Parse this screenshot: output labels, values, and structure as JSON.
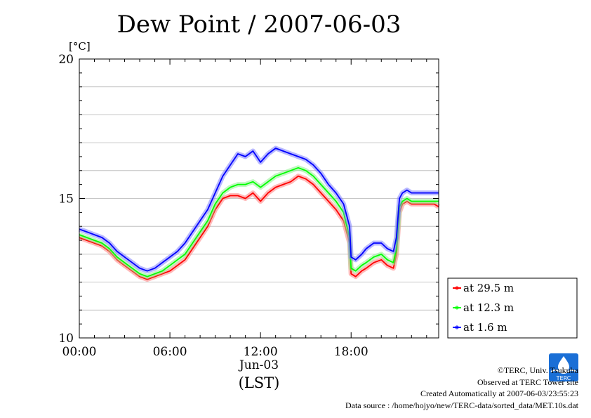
{
  "chart_data": {
    "type": "line",
    "title": "Dew Point / 2007-06-03",
    "ylabel": "[°C]",
    "xlabel": "(LST)",
    "date_label": "Jun-03",
    "ylim": [
      10,
      20
    ],
    "xlim": [
      0,
      23.8
    ],
    "yticks": [
      {
        "value": 10,
        "label": "10"
      },
      {
        "value": 15,
        "label": "15"
      },
      {
        "value": 20,
        "label": "20"
      }
    ],
    "xticks": [
      {
        "value": 0,
        "label": "00:00"
      },
      {
        "value": 6,
        "label": "06:00"
      },
      {
        "value": 12,
        "label": "12:00"
      },
      {
        "value": 18,
        "label": "18:00"
      }
    ],
    "grid": true,
    "legend_position": "right",
    "series": [
      {
        "name": "at 29.5 m",
        "color": "#ff0000",
        "x": [
          0,
          0.5,
          1,
          1.5,
          2,
          2.5,
          3,
          3.5,
          4,
          4.5,
          5,
          5.5,
          6,
          6.5,
          7,
          7.5,
          8,
          8.5,
          9,
          9.5,
          10,
          10.5,
          11,
          11.5,
          12,
          12.5,
          13,
          13.5,
          14,
          14.5,
          15,
          15.5,
          16,
          16.5,
          17,
          17.5,
          17.9,
          18.0,
          18.3,
          18.7,
          19.0,
          19.5,
          20.0,
          20.4,
          20.8,
          21.0,
          21.2,
          21.4,
          21.7,
          22,
          22.5,
          23,
          23.5,
          23.8
        ],
        "y": [
          13.6,
          13.5,
          13.4,
          13.3,
          13.1,
          12.8,
          12.6,
          12.4,
          12.2,
          12.1,
          12.2,
          12.3,
          12.4,
          12.6,
          12.8,
          13.2,
          13.6,
          14.0,
          14.6,
          15.0,
          15.1,
          15.1,
          15.0,
          15.2,
          14.9,
          15.2,
          15.4,
          15.5,
          15.6,
          15.8,
          15.7,
          15.5,
          15.2,
          14.9,
          14.6,
          14.2,
          13.4,
          12.3,
          12.2,
          12.4,
          12.5,
          12.7,
          12.8,
          12.6,
          12.5,
          13.0,
          14.5,
          14.8,
          14.9,
          14.8,
          14.8,
          14.8,
          14.8,
          14.7
        ]
      },
      {
        "name": "at 12.3 m",
        "color": "#00ff00",
        "x": [
          0,
          0.5,
          1,
          1.5,
          2,
          2.5,
          3,
          3.5,
          4,
          4.5,
          5,
          5.5,
          6,
          6.5,
          7,
          7.5,
          8,
          8.5,
          9,
          9.5,
          10,
          10.5,
          11,
          11.5,
          12,
          12.5,
          13,
          13.5,
          14,
          14.5,
          15,
          15.5,
          16,
          16.5,
          17,
          17.5,
          17.9,
          18.0,
          18.3,
          18.7,
          19.0,
          19.5,
          20.0,
          20.4,
          20.8,
          21.0,
          21.2,
          21.4,
          21.7,
          22,
          22.5,
          23,
          23.5,
          23.8
        ],
        "y": [
          13.7,
          13.6,
          13.5,
          13.4,
          13.2,
          12.9,
          12.7,
          12.5,
          12.3,
          12.2,
          12.3,
          12.4,
          12.6,
          12.8,
          13.0,
          13.4,
          13.8,
          14.2,
          14.8,
          15.2,
          15.4,
          15.5,
          15.5,
          15.6,
          15.4,
          15.6,
          15.8,
          15.9,
          16.0,
          16.1,
          16.0,
          15.8,
          15.5,
          15.2,
          14.9,
          14.5,
          13.6,
          12.5,
          12.4,
          12.6,
          12.7,
          12.9,
          13.0,
          12.8,
          12.7,
          13.2,
          14.7,
          14.9,
          15.0,
          14.9,
          14.9,
          14.9,
          14.9,
          14.9
        ]
      },
      {
        "name": "at 1.6 m",
        "color": "#0000ff",
        "x": [
          0,
          0.5,
          1,
          1.5,
          2,
          2.5,
          3,
          3.5,
          4,
          4.5,
          5,
          5.5,
          6,
          6.5,
          7,
          7.5,
          8,
          8.5,
          9,
          9.5,
          10,
          10.5,
          11,
          11.5,
          12,
          12.5,
          13,
          13.5,
          14,
          14.5,
          15,
          15.5,
          16,
          16.5,
          17,
          17.5,
          17.9,
          18.0,
          18.3,
          18.7,
          19.0,
          19.5,
          20.0,
          20.4,
          20.8,
          21.0,
          21.2,
          21.4,
          21.7,
          22,
          22.5,
          23,
          23.5,
          23.8
        ],
        "y": [
          13.9,
          13.8,
          13.7,
          13.6,
          13.4,
          13.1,
          12.9,
          12.7,
          12.5,
          12.4,
          12.5,
          12.7,
          12.9,
          13.1,
          13.4,
          13.8,
          14.2,
          14.6,
          15.2,
          15.8,
          16.2,
          16.6,
          16.5,
          16.7,
          16.3,
          16.6,
          16.8,
          16.7,
          16.6,
          16.5,
          16.4,
          16.2,
          15.9,
          15.5,
          15.2,
          14.8,
          14.0,
          12.9,
          12.8,
          13.0,
          13.2,
          13.4,
          13.4,
          13.2,
          13.1,
          13.6,
          15.0,
          15.2,
          15.3,
          15.2,
          15.2,
          15.2,
          15.2,
          15.2
        ]
      }
    ]
  },
  "credits": {
    "copyright": "©TERC, Univ. Tsukuba",
    "site": "Observed at TERC Tower site",
    "created": "Created Automatically at 2007-06-03/23:55:23",
    "source": "Data source : /home/hojyo/new/TERC-data/sorted_data/MET.10s.dat"
  },
  "logo": {
    "text": "TERC",
    "color": "#1a6fd6"
  }
}
